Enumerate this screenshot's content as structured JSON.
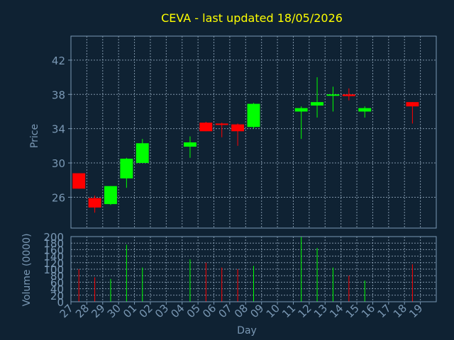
{
  "chart_data": {
    "type": "candlestick",
    "title": "CEVA - last updated 18/05/2026",
    "xlabel": "Day",
    "days": [
      "27",
      "28",
      "29",
      "30",
      "01",
      "02",
      "03",
      "04",
      "05",
      "06",
      "07",
      "08",
      "09",
      "10",
      "11",
      "12",
      "13",
      "14",
      "15",
      "16",
      "17",
      "18",
      "19"
    ],
    "price_axis": {
      "label": "Price",
      "ticks": [
        26,
        30,
        34,
        38,
        42
      ],
      "ylim": [
        22.4,
        44.8
      ]
    },
    "volume_axis": {
      "label": "Volume (0000)",
      "ticks": [
        0,
        20,
        40,
        60,
        80,
        100,
        120,
        140,
        160,
        180,
        200
      ],
      "ylim": [
        0,
        200
      ]
    },
    "up_color": "#00ff00",
    "down_color": "#ff0000",
    "candles": [
      {
        "day": "27",
        "open": 28.8,
        "high": 28.8,
        "low": 27.0,
        "close": 27.0,
        "volume": 100
      },
      {
        "day": "28",
        "open": 25.9,
        "high": 26.2,
        "low": 24.2,
        "close": 24.8,
        "volume": 75
      },
      {
        "day": "29",
        "open": 25.2,
        "high": 27.3,
        "low": 25.1,
        "close": 27.3,
        "volume": 70
      },
      {
        "day": "30",
        "open": 28.2,
        "high": 30.6,
        "low": 27.1,
        "close": 30.5,
        "volume": 175
      },
      {
        "day": "01",
        "open": 30.0,
        "high": 32.8,
        "low": 30.0,
        "close": 32.3,
        "volume": 105
      },
      {
        "day": "04",
        "open": 31.9,
        "high": 33.1,
        "low": 30.6,
        "close": 32.4,
        "volume": 130
      },
      {
        "day": "05",
        "open": 34.7,
        "high": 34.8,
        "low": 33.7,
        "close": 33.7,
        "volume": 120
      },
      {
        "day": "06",
        "open": 34.6,
        "high": 34.7,
        "low": 33.0,
        "close": 34.5,
        "volume": 105
      },
      {
        "day": "07",
        "open": 34.5,
        "high": 34.6,
        "low": 32.0,
        "close": 33.7,
        "volume": 100
      },
      {
        "day": "08",
        "open": 34.2,
        "high": 37.0,
        "low": 34.0,
        "close": 36.9,
        "volume": 110
      },
      {
        "day": "11",
        "open": 36.0,
        "high": 36.6,
        "low": 32.8,
        "close": 36.4,
        "volume": 200
      },
      {
        "day": "12",
        "open": 36.7,
        "high": 40.0,
        "low": 35.3,
        "close": 37.1,
        "volume": 165
      },
      {
        "day": "13",
        "open": 37.9,
        "high": 38.9,
        "low": 36.0,
        "close": 38.0,
        "volume": 105
      },
      {
        "day": "14",
        "open": 38.0,
        "high": 38.7,
        "low": 37.3,
        "close": 37.8,
        "volume": 80
      },
      {
        "day": "15",
        "open": 36.0,
        "high": 36.6,
        "low": 35.3,
        "close": 36.4,
        "volume": 65
      },
      {
        "day": "18",
        "open": 37.1,
        "high": 37.1,
        "low": 34.6,
        "close": 36.6,
        "volume": 115
      }
    ]
  }
}
